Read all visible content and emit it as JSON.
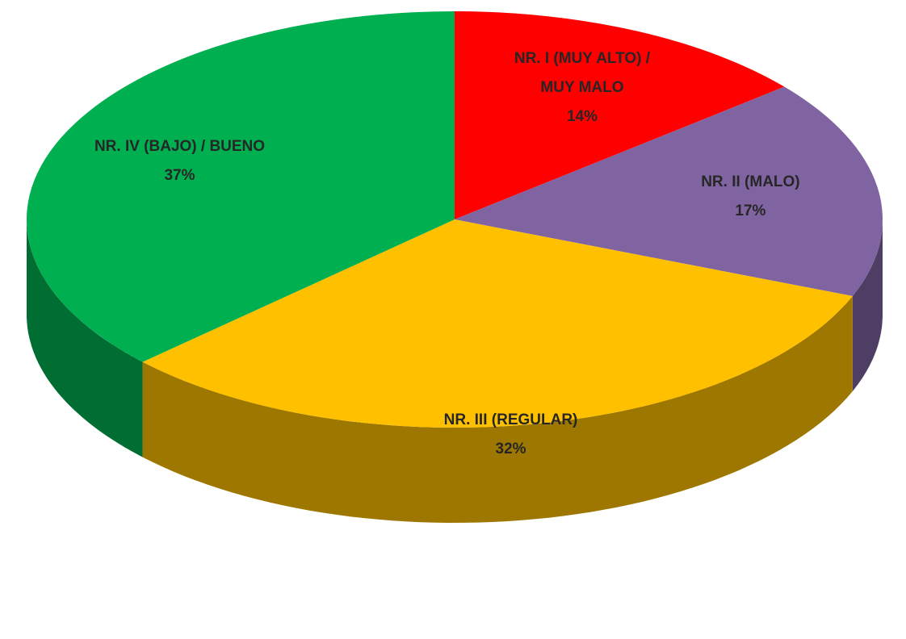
{
  "chart_data": {
    "type": "pie3d",
    "categories": [
      "NR. I (MUY ALTO) / MUY MALO",
      "NR. II (MALO)",
      "NR. III (REGULAR)",
      "NR. IV (BAJO) / BUENO"
    ],
    "values": [
      14,
      17,
      32,
      37
    ],
    "value_labels": [
      "14%",
      "17%",
      "32%",
      "37%"
    ],
    "colors": [
      "#ff0000",
      "#8064a2",
      "#ffc000",
      "#00b050"
    ]
  }
}
